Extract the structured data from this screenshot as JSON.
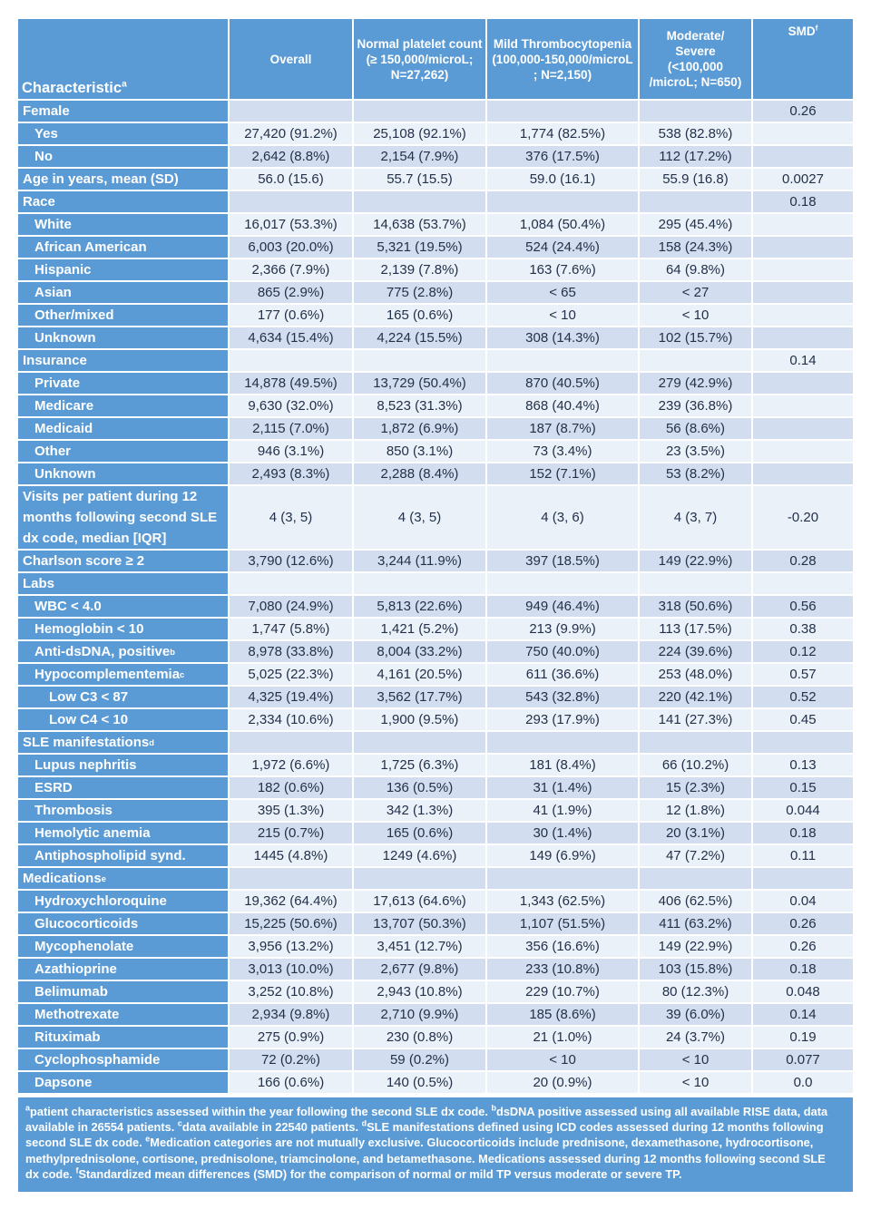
{
  "colors": {
    "header_blue": "#5B9BD5",
    "band_dark": "#D2DEEF",
    "band_light": "#EAF1F9",
    "data_text": "#223049"
  },
  "table": {
    "header": [
      {
        "text": "Characteristic",
        "sup": "a"
      },
      {
        "text": "Overall"
      },
      {
        "text": "Normal platelet count\n(≥ 150,000/microL;\nN=27,262)"
      },
      {
        "text": "Mild Thrombocytopenia\n(100,000-150,000/microL\n; N=2,150)"
      },
      {
        "text": "Moderate/\nSevere\n(<100,000\n/microL; N=650)"
      },
      {
        "text": "SMD",
        "sup": "f"
      }
    ],
    "rows": [
      {
        "label": "Female",
        "indent": 0,
        "cells": [
          "",
          "",
          "",
          "",
          "0.26"
        ]
      },
      {
        "label": "Yes",
        "indent": 1,
        "cells": [
          "27,420 (91.2%)",
          "25,108 (92.1%)",
          "1,774 (82.5%)",
          "538 (82.8%)",
          ""
        ]
      },
      {
        "label": "No",
        "indent": 1,
        "cells": [
          "2,642 (8.8%)",
          "2,154 (7.9%)",
          "376 (17.5%)",
          "112 (17.2%)",
          ""
        ]
      },
      {
        "label": "Age in years, mean (SD)",
        "indent": 0,
        "cells": [
          "56.0 (15.6)",
          "55.7 (15.5)",
          "59.0 (16.1)",
          "55.9 (16.8)",
          "0.0027"
        ]
      },
      {
        "label": "Race",
        "indent": 0,
        "cells": [
          "",
          "",
          "",
          "",
          "0.18"
        ]
      },
      {
        "label": "White",
        "indent": 1,
        "cells": [
          "16,017 (53.3%)",
          "14,638 (53.7%)",
          "1,084 (50.4%)",
          "295 (45.4%)",
          ""
        ]
      },
      {
        "label": "African American",
        "indent": 1,
        "cells": [
          "6,003 (20.0%)",
          "5,321 (19.5%)",
          "524 (24.4%)",
          "158 (24.3%)",
          ""
        ]
      },
      {
        "label": "Hispanic",
        "indent": 1,
        "cells": [
          "2,366 (7.9%)",
          "2,139 (7.8%)",
          "163 (7.6%)",
          "64 (9.8%)",
          ""
        ]
      },
      {
        "label": "Asian",
        "indent": 1,
        "cells": [
          "865 (2.9%)",
          "775 (2.8%)",
          "< 65",
          "< 27",
          ""
        ]
      },
      {
        "label": "Other/mixed",
        "indent": 1,
        "cells": [
          "177 (0.6%)",
          "165 (0.6%)",
          "< 10",
          "< 10",
          ""
        ]
      },
      {
        "label": "Unknown",
        "indent": 1,
        "cells": [
          "4,634 (15.4%)",
          "4,224 (15.5%)",
          "308 (14.3%)",
          "102 (15.7%)",
          ""
        ]
      },
      {
        "label": "Insurance",
        "indent": 0,
        "cells": [
          "",
          "",
          "",
          "",
          "0.14"
        ]
      },
      {
        "label": "Private",
        "indent": 1,
        "cells": [
          "14,878 (49.5%)",
          "13,729 (50.4%)",
          "870 (40.5%)",
          "279 (42.9%)",
          ""
        ]
      },
      {
        "label": "Medicare",
        "indent": 1,
        "cells": [
          "9,630 (32.0%)",
          "8,523 (31.3%)",
          "868 (40.4%)",
          "239 (36.8%)",
          ""
        ]
      },
      {
        "label": "Medicaid",
        "indent": 1,
        "cells": [
          "2,115 (7.0%)",
          "1,872 (6.9%)",
          "187 (8.7%)",
          "56 (8.6%)",
          ""
        ]
      },
      {
        "label": "Other",
        "indent": 1,
        "cells": [
          "946 (3.1%)",
          "850 (3.1%)",
          "73 (3.4%)",
          "23 (3.5%)",
          ""
        ]
      },
      {
        "label": "Unknown",
        "indent": 1,
        "cells": [
          "2,493 (8.3%)",
          "2,288 (8.4%)",
          "152 (7.1%)",
          "53 (8.2%)",
          ""
        ]
      },
      {
        "label": "Visits per patient during 12 months following second SLE dx code, median [IQR]",
        "indent": 0,
        "cells": [
          "4 (3, 5)",
          "4 (3, 5)",
          "4 (3, 6)",
          "4 (3, 7)",
          "-0.20"
        ]
      },
      {
        "label": "Charlson score ≥ 2",
        "indent": 0,
        "cells": [
          "3,790 (12.6%)",
          "3,244 (11.9%)",
          "397 (18.5%)",
          "149 (22.9%)",
          "0.28"
        ]
      },
      {
        "label": "Labs",
        "indent": 0,
        "cells": [
          "",
          "",
          "",
          "",
          ""
        ]
      },
      {
        "label": "WBC < 4.0",
        "indent": 1,
        "cells": [
          "7,080 (24.9%)",
          "5,813 (22.6%)",
          "949 (46.4%)",
          "318 (50.6%)",
          "0.56"
        ]
      },
      {
        "label": "Hemoglobin < 10",
        "indent": 1,
        "cells": [
          "1,747 (5.8%)",
          "1,421 (5.2%)",
          "213 (9.9%)",
          "113 (17.5%)",
          "0.38"
        ]
      },
      {
        "label": "Anti-dsDNA, positive",
        "sup": "b",
        "indent": 1,
        "cells": [
          "8,978 (33.8%)",
          "8,004 (33.2%)",
          "750 (40.0%)",
          "224 (39.6%)",
          "0.12"
        ]
      },
      {
        "label": "Hypocomplementemia",
        "sup": "c",
        "indent": 1,
        "cells": [
          "5,025 (22.3%)",
          "4,161 (20.5%)",
          "611 (36.6%)",
          "253 (48.0%)",
          "0.57"
        ]
      },
      {
        "label": "Low C3 < 87",
        "indent": 2,
        "cells": [
          "4,325 (19.4%)",
          "3,562 (17.7%)",
          "543 (32.8%)",
          "220 (42.1%)",
          "0.52"
        ]
      },
      {
        "label": "Low C4 < 10",
        "indent": 2,
        "cells": [
          "2,334 (10.6%)",
          "1,900 (9.5%)",
          "293 (17.9%)",
          "141 (27.3%)",
          "0.45"
        ]
      },
      {
        "label": "SLE manifestations",
        "sup": "d",
        "indent": 0,
        "cells": [
          "",
          "",
          "",
          "",
          ""
        ]
      },
      {
        "label": "Lupus nephritis",
        "indent": 1,
        "cells": [
          "1,972 (6.6%)",
          "1,725 (6.3%)",
          "181 (8.4%)",
          "66 (10.2%)",
          "0.13"
        ]
      },
      {
        "label": "ESRD",
        "indent": 1,
        "cells": [
          "182 (0.6%)",
          "136 (0.5%)",
          "31 (1.4%)",
          "15 (2.3%)",
          "0.15"
        ]
      },
      {
        "label": "Thrombosis",
        "indent": 1,
        "cells": [
          "395 (1.3%)",
          "342 (1.3%)",
          "41 (1.9%)",
          "12 (1.8%)",
          "0.044"
        ]
      },
      {
        "label": "Hemolytic anemia",
        "indent": 1,
        "cells": [
          "215 (0.7%)",
          "165 (0.6%)",
          "30 (1.4%)",
          "20 (3.1%)",
          "0.18"
        ]
      },
      {
        "label": "Antiphospholipid synd.",
        "indent": 1,
        "cells": [
          "1445 (4.8%)",
          "1249 (4.6%)",
          "149 (6.9%)",
          "47 (7.2%)",
          "0.11"
        ]
      },
      {
        "label": "Medications",
        "sup": "e",
        "indent": 0,
        "cells": [
          "",
          "",
          "",
          "",
          ""
        ]
      },
      {
        "label": "Hydroxychloroquine",
        "indent": 1,
        "cells": [
          "19,362 (64.4%)",
          "17,613 (64.6%)",
          "1,343 (62.5%)",
          "406 (62.5%)",
          "0.04"
        ]
      },
      {
        "label": "Glucocorticoids",
        "indent": 1,
        "cells": [
          "15,225 (50.6%)",
          "13,707 (50.3%)",
          "1,107 (51.5%)",
          "411 (63.2%)",
          "0.26"
        ]
      },
      {
        "label": "Mycophenolate",
        "indent": 1,
        "cells": [
          "3,956 (13.2%)",
          "3,451 (12.7%)",
          "356 (16.6%)",
          "149 (22.9%)",
          "0.26"
        ]
      },
      {
        "label": "Azathioprine",
        "indent": 1,
        "cells": [
          "3,013 (10.0%)",
          "2,677 (9.8%)",
          "233 (10.8%)",
          "103 (15.8%)",
          "0.18"
        ]
      },
      {
        "label": "Belimumab",
        "indent": 1,
        "cells": [
          "3,252 (10.8%)",
          "2,943 (10.8%)",
          "229 (10.7%)",
          "80 (12.3%)",
          "0.048"
        ]
      },
      {
        "label": "Methotrexate",
        "indent": 1,
        "cells": [
          "2,934 (9.8%)",
          "2,710 (9.9%)",
          "185 (8.6%)",
          "39 (6.0%)",
          "0.14"
        ]
      },
      {
        "label": "Rituximab",
        "indent": 1,
        "cells": [
          "275 (0.9%)",
          "230 (0.8%)",
          "21 (1.0%)",
          "24 (3.7%)",
          "0.19"
        ]
      },
      {
        "label": "Cyclophosphamide",
        "indent": 1,
        "cells": [
          "72 (0.2%)",
          "59 (0.2%)",
          "< 10",
          "< 10",
          "0.077"
        ]
      },
      {
        "label": "Dapsone",
        "indent": 1,
        "cells": [
          "166 (0.6%)",
          "140 (0.5%)",
          "20 (0.9%)",
          "< 10",
          "0.0"
        ]
      }
    ]
  },
  "footnote": {
    "parts": [
      {
        "sup": "a",
        "text": "patient characteristics assessed within the year following the second SLE dx code.  "
      },
      {
        "sup": "b",
        "text": "dsDNA positive assessed using all available RISE data,  data available in 26554  patients.  "
      },
      {
        "sup": "c",
        "text": "data available in 22540  patients.   "
      },
      {
        "sup": "d",
        "text": "SLE manifestations defined using ICD codes assessed during 12 months following second SLE dx code.  "
      },
      {
        "sup": "e",
        "text": "Medication categories are not mutually exclusive. Glucocorticoids include prednisone, dexamethasone, hydrocortisone, methylprednisolone, cortisone, prednisolone, triamcinolone, and betamethasone. Medications assessed during 12 months following second SLE dx code.  "
      },
      {
        "sup": "f",
        "text": "Standardized mean differences (SMD) for the comparison of normal or mild TP versus moderate or severe TP."
      }
    ]
  }
}
